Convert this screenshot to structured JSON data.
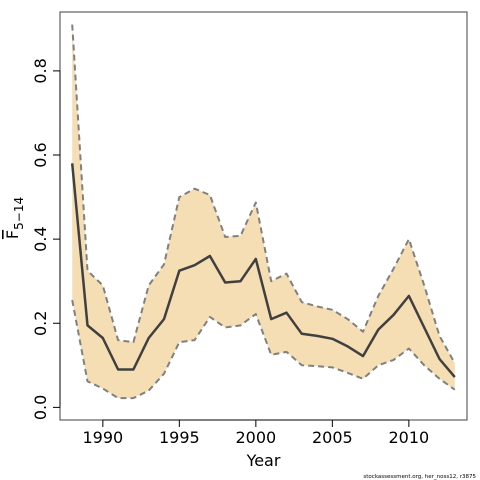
{
  "chart_data": {
    "type": "line",
    "xlabel": "Year",
    "ylabel_base": "F",
    "ylabel_sub": "5−14",
    "xlim": [
      1987.2,
      2013.8
    ],
    "ylim": [
      -0.03,
      0.94
    ],
    "xticks": [
      1990,
      1995,
      2000,
      2005,
      2010
    ],
    "yticks": [
      0.0,
      0.2,
      0.4,
      0.6,
      0.8
    ],
    "ytick_labels": [
      "0.0",
      "0.2",
      "0.4",
      "0.6",
      "0.8"
    ],
    "grid": false,
    "colors": {
      "band": "#f5deb3",
      "line": "#404040",
      "bounds": "#808080",
      "frame": "#404040"
    },
    "x": [
      1988,
      1989,
      1990,
      1991,
      1992,
      1993,
      1994,
      1995,
      1996,
      1997,
      1998,
      1999,
      2000,
      2001,
      2002,
      2003,
      2004,
      2005,
      2006,
      2007,
      2008,
      2009,
      2010,
      2011,
      2012,
      2013
    ],
    "series": [
      {
        "role": "estimate",
        "values": [
          0.58,
          0.195,
          0.165,
          0.09,
          0.09,
          0.165,
          0.21,
          0.325,
          0.338,
          0.36,
          0.297,
          0.3,
          0.353,
          0.21,
          0.225,
          0.175,
          0.17,
          0.163,
          0.145,
          0.122,
          0.185,
          0.22,
          0.265,
          0.19,
          0.115,
          0.072
        ]
      },
      {
        "role": "upper",
        "values": [
          0.91,
          0.325,
          0.29,
          0.16,
          0.155,
          0.29,
          0.34,
          0.5,
          0.52,
          0.505,
          0.405,
          0.408,
          0.487,
          0.3,
          0.318,
          0.25,
          0.24,
          0.232,
          0.21,
          0.18,
          0.265,
          0.33,
          0.4,
          0.29,
          0.17,
          0.105
        ]
      },
      {
        "role": "lower",
        "values": [
          0.255,
          0.062,
          0.045,
          0.022,
          0.022,
          0.04,
          0.08,
          0.155,
          0.16,
          0.215,
          0.19,
          0.195,
          0.222,
          0.125,
          0.132,
          0.1,
          0.098,
          0.095,
          0.082,
          0.068,
          0.1,
          0.113,
          0.14,
          0.1,
          0.068,
          0.042
        ]
      }
    ]
  },
  "footer_text": "stockassessment.org, her_noss12, r3875"
}
